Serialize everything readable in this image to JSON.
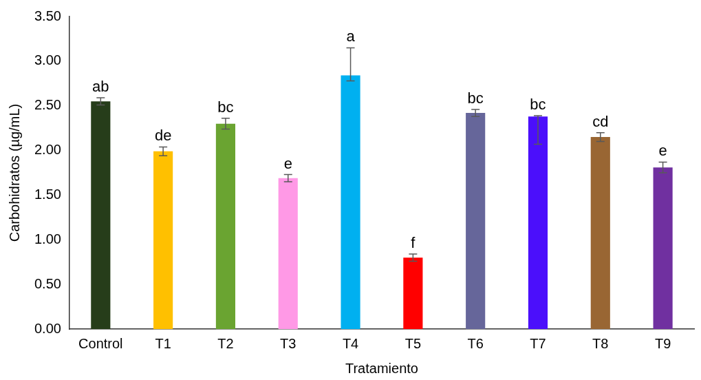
{
  "chart_data": {
    "type": "bar",
    "xlabel": "Tratamiento",
    "ylabel": "Carbohidratos (µg/mL)",
    "categories": [
      "Control",
      "T1",
      "T2",
      "T3",
      "T4",
      "T5",
      "T6",
      "T7",
      "T8",
      "T9"
    ],
    "values": [
      2.55,
      1.99,
      2.3,
      1.69,
      2.84,
      0.8,
      2.42,
      2.38,
      2.15,
      1.81
    ],
    "errors": [
      0.04,
      0.05,
      0.06,
      0.04,
      [
        2.78,
        3.15
      ],
      0.04,
      0.04,
      [
        2.07,
        2.39
      ],
      0.05,
      0.06
    ],
    "colors": [
      "#263d1a",
      "#ffc000",
      "#6aa431",
      "#ff99e6",
      "#00b0f0",
      "#ff0000",
      "#66669a",
      "#4b0ffb",
      "#996633",
      "#7030a0"
    ],
    "ylim": [
      0,
      3.5
    ],
    "yticks": [
      {
        "value": 0,
        "label": "0.00"
      },
      {
        "value": 0.5,
        "label": "0.50"
      },
      {
        "value": 1,
        "label": "1.00"
      },
      {
        "value": 1.5,
        "label": "1.50"
      },
      {
        "value": 2,
        "label": "2.00"
      },
      {
        "value": 2.5,
        "label": "2.50"
      },
      {
        "value": 3,
        "label": "3.00"
      },
      {
        "value": 3.5,
        "label": "3.50"
      }
    ],
    "grid": false,
    "legend": false,
    "annotations": [
      {
        "text": "ab",
        "x": "Control",
        "y": 2.59
      },
      {
        "text": "de",
        "x": "T1",
        "y": 2.04
      },
      {
        "text": "bc",
        "x": "T2",
        "y": 2.36
      },
      {
        "text": "e",
        "x": "T3",
        "y": 1.73
      },
      {
        "text": "a",
        "x": "T4",
        "y": 3.15
      },
      {
        "text": "f",
        "x": "T5",
        "y": 0.84
      },
      {
        "text": "bc",
        "x": "T6",
        "y": 2.46
      },
      {
        "text": "bc",
        "x": "T7",
        "y": 2.39
      },
      {
        "text": "cd",
        "x": "T8",
        "y": 2.2
      },
      {
        "text": "e",
        "x": "T9",
        "y": 1.87
      }
    ]
  }
}
